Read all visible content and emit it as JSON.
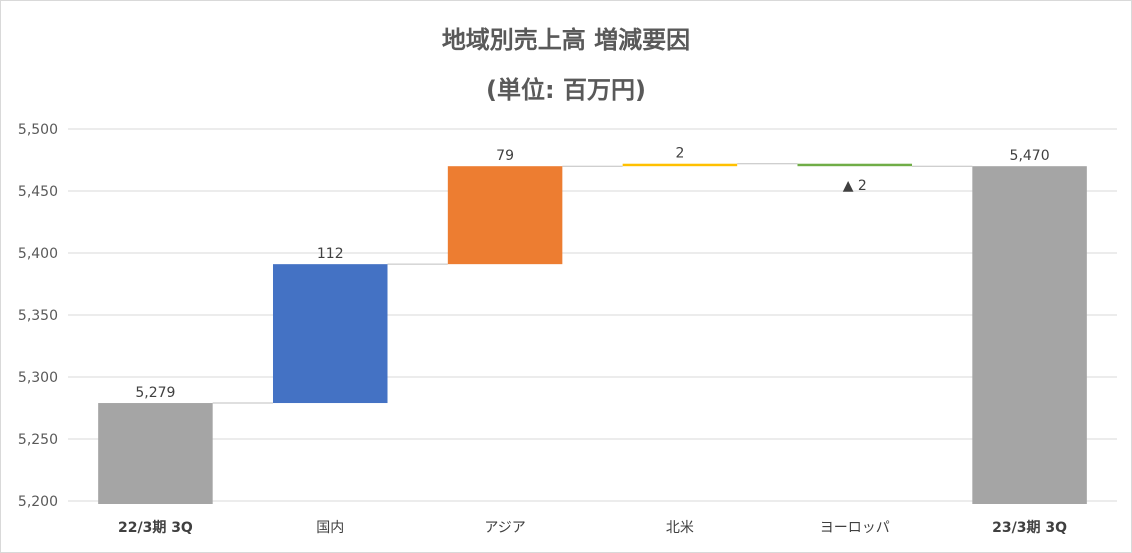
{
  "chart_data": {
    "type": "waterfall",
    "title": "地域別売上高 増減要因",
    "subtitle": "(単位: 百万円)",
    "categories": [
      "22/3期 3Q",
      "国内",
      "アジア",
      "北米",
      "ヨーロッパ",
      "23/3期 3Q"
    ],
    "values": [
      5279,
      112,
      79,
      2,
      -2,
      5470
    ],
    "kinds": [
      "total",
      "delta",
      "delta",
      "delta",
      "delta",
      "total"
    ],
    "data_labels": [
      "5,279",
      "112",
      "79",
      "2",
      "▲ 2",
      "5,470"
    ],
    "colors": [
      "#a5a5a5",
      "#4472c4",
      "#ed7d31",
      "#ffc000",
      "#70ad47",
      "#a5a5a5"
    ],
    "ylim": [
      5200,
      5500
    ],
    "yticks": [
      5200,
      5250,
      5300,
      5350,
      5400,
      5450,
      5500
    ],
    "ytick_labels": [
      "5,200",
      "5,250",
      "5,300",
      "5,350",
      "5,400",
      "5,450",
      "5,500"
    ],
    "grid": true,
    "connector_lines": true,
    "xlabel": "",
    "ylabel": ""
  }
}
